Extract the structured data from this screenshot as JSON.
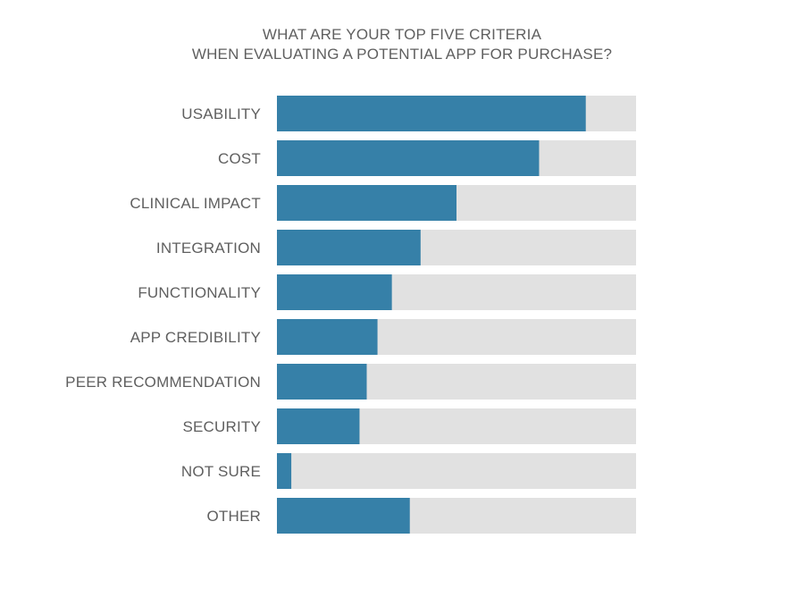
{
  "chart_data": {
    "type": "bar",
    "orientation": "horizontal",
    "title_line1": "WHAT ARE YOUR TOP FIVE CRITERIA",
    "title_line2": "WHEN EVALUATING A POTENTIAL APP FOR PURCHASE?",
    "categories": [
      "USABILITY",
      "COST",
      "CLINICAL IMPACT",
      "INTEGRATION",
      "FUNCTIONALITY",
      "APP CREDIBILITY",
      "PEER RECOMMENDATION",
      "SECURITY",
      "NOT SURE",
      "OTHER"
    ],
    "values": [
      86,
      73,
      50,
      40,
      32,
      28,
      25,
      23,
      4,
      37
    ],
    "xlim": [
      0,
      100
    ],
    "grid": false,
    "legend": "none",
    "colors": {
      "bar": "#3680a8",
      "track": "#e1e1e1",
      "text": "#5f5f5f"
    }
  }
}
